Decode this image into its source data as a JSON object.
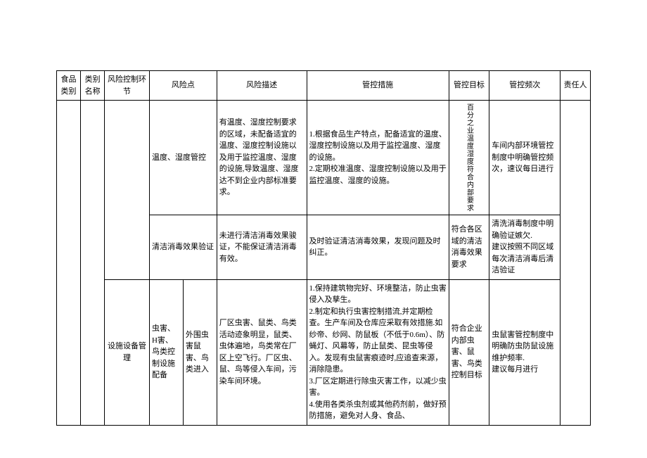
{
  "headers": {
    "col1": "食品类别",
    "col2": "类别名称",
    "col3": "风险控制环节",
    "col4": "风险点",
    "col5_extra": "",
    "col6": "风险描述",
    "col7": "管控措施",
    "col8": "管控目标",
    "col9": "管控频次",
    "col10": "责任人"
  },
  "rows": [
    {
      "risk_point": "温度、湿度管控",
      "risk_desc": "有温度、湿度控制要求的区域，未配备适宜的温度、湿度控制设施以及用于监控温度、湿度的设施,导致温度、湿度达不到企业内部标准要求。",
      "measures": "1.根据食品生产特点，配备适宜的温度、湿度控制设施以及用于监控温度、湿度的设施。\n2.定期校准温度、湿度控制设施以及用于监控温度、湿度的设施。",
      "target_vertical": "百分之业温度湿度符合内部要求",
      "frequency": "车间内部环境管控制度中明确管控频次，速议每日进行"
    },
    {
      "risk_point": "清洁消毒效果验证",
      "risk_desc": "未进行清洁消毒效果骏证，不能保证清洁消毒有效。",
      "measures": "及时验证清洁消毒效果，发现问题及时纠正。",
      "target": "符合各区域的清洁消毒效果要求",
      "frequency": "清洗消毒制度中明确验证嫉欠.\n建议按照不同区域每次清洁消毒后清洁验证"
    },
    {
      "link": "设施设备管理",
      "risk_point_a": "虫害、H害、鸟类控制设施配备",
      "risk_point_b": "外围虫害鼠害、鸟类进入",
      "risk_desc": "厂区虫害、鼠类、鸟类活动迹象明显，鼠类、虫体遍地，鸟类常在厂区上空飞行。厂区虫、鼠、鸟等侵入车间，污染车间环境。",
      "measures": "1.保持建筑物完好、环境整洁，防止虫害侵入及孳生。\n2.制定和执行虫害控制措流,并定期检查。生产车间及仓库应采取有效措施.如纱帝、纱网、防鼠板（不低于0.6m）、防蝇灯、风幕等，防止鼠类、昆虫等侵入。发现有虫鼠害痕迹时,应追查来源，消除隐患。\n3.厂区定期进行除虫灭害工作，以减少虫害。\n4.使用各类杀虫剂或其他药剂前，做好预防措施，避免对人身、食品、",
      "target": "符合企业内部虫害、鼠害、鸟类控制目标",
      "frequency": "虫鼠害管控制度中明确防虫防鼠设施维护频率.\n建议每月进行"
    }
  ]
}
